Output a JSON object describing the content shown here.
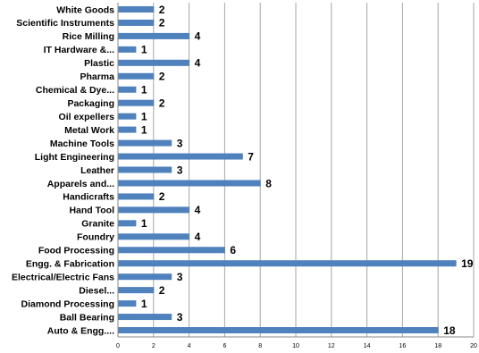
{
  "chart_data": {
    "type": "bar",
    "orientation": "horizontal",
    "categories": [
      "White Goods",
      "Scientific Instruments",
      "Rice Milling",
      "IT Hardware &...",
      "Plastic",
      "Pharma",
      "Chemical & Dye...",
      "Packaging",
      "Oil expellers",
      "Metal Work",
      "Machine Tools",
      "Light Engineering",
      "Leather",
      "Apparels and...",
      "Handicrafts",
      "Hand Tool",
      "Granite",
      "Foundry",
      "Food Processing",
      "Engg. & Fabrication",
      "Electrical/Electric Fans",
      "Diesel...",
      "Diamond Processing",
      "Ball Bearing",
      "Auto & Engg...."
    ],
    "values": [
      2,
      2,
      4,
      1,
      4,
      2,
      1,
      2,
      1,
      1,
      3,
      7,
      3,
      8,
      2,
      4,
      1,
      4,
      6,
      19,
      3,
      2,
      1,
      3,
      18
    ],
    "xlim": [
      0,
      20
    ],
    "xticks": [
      "0",
      "2",
      "4",
      "6",
      "8",
      "10",
      "12",
      "14",
      "16",
      "18",
      "20"
    ],
    "grid": true,
    "legend": "none",
    "bar_color": "#4f81bd"
  }
}
